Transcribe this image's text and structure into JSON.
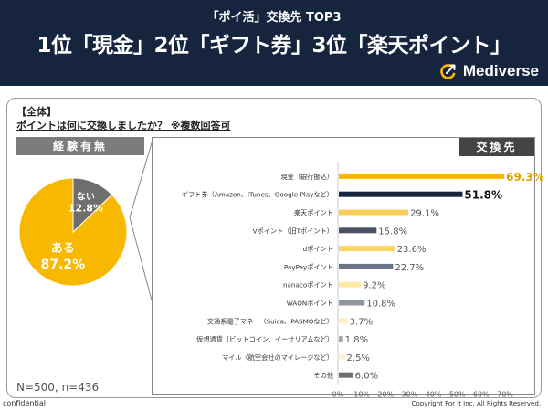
{
  "header": {
    "subtitle": "「ポイ活」交換先 TOP3",
    "title": "1位「現金」2位「ギフト券」3位「楽天ポイント」",
    "logo_text": "Mediverse",
    "logo_icon": "c-arrow-icon"
  },
  "panel": {
    "scope_label": "【全体】",
    "question": "ポイントは何に交換しましたか？ ※複数回答可",
    "pie_section_label": "経験有無",
    "bar_section_label": "交換先",
    "sample_note": "N=500, n=436"
  },
  "footer": {
    "left": "confidential",
    "right": "Copyright For it Inc. All Rights Reserved."
  },
  "colors": {
    "header_bg": "#16243e",
    "pie_yes": "#f9b800",
    "pie_no": "#6e6e6e"
  },
  "chart_data": [
    {
      "type": "pie",
      "title": "経験有無",
      "slices": [
        {
          "label": "ある",
          "value": 87.2,
          "value_text": "87.2%",
          "color": "#f9b800"
        },
        {
          "label": "ない",
          "value": 12.8,
          "value_text": "12.8%",
          "color": "#6e6e6e"
        }
      ]
    },
    {
      "type": "bar",
      "orientation": "horizontal",
      "title": "交換先",
      "categories": [
        "現金（銀行振込）",
        "ギフト券（Amazon、iTunes、Google Playなど）",
        "楽天ポイント",
        "Vポイント（旧Tポイント）",
        "dポイント",
        "PayPayポイント",
        "nanacoポイント",
        "WAONポイント",
        "交通系電子マネー（Suica、PASMOなど）",
        "仮想通貨（ビットコイン、イーサリアムなど）",
        "マイル（航空会社のマイレージなど）",
        "その他"
      ],
      "values": [
        69.3,
        51.8,
        29.1,
        15.8,
        23.6,
        22.7,
        9.2,
        10.8,
        3.7,
        1.8,
        2.5,
        6.0
      ],
      "value_labels": [
        "69.3%",
        "51.8%",
        "29.1%",
        "15.8%",
        "23.6%",
        "22.7%",
        "9.2%",
        "10.8%",
        "3.7%",
        "1.8%",
        "2.5%",
        "6.0%"
      ],
      "colors": [
        "#f9b800",
        "#16243e",
        "#f9cd5a",
        "#4a5266",
        "#f9d463",
        "#6b7388",
        "#fde9a6",
        "#8f95a3",
        "#fdf0c2",
        "#a3a6ae",
        "#fdf2cf",
        "#6e6e6e"
      ],
      "label_colors": [
        "#e0a000",
        "#111111",
        "#555555",
        "#555555",
        "#555555",
        "#555555",
        "#555555",
        "#555555",
        "#555555",
        "#555555",
        "#555555",
        "#555555"
      ],
      "xticks": [
        "0%",
        "10%",
        "20%",
        "30%",
        "40%",
        "50%",
        "60%",
        "70%"
      ],
      "xlim": [
        0,
        70
      ],
      "grid": false,
      "legend": "none"
    }
  ]
}
